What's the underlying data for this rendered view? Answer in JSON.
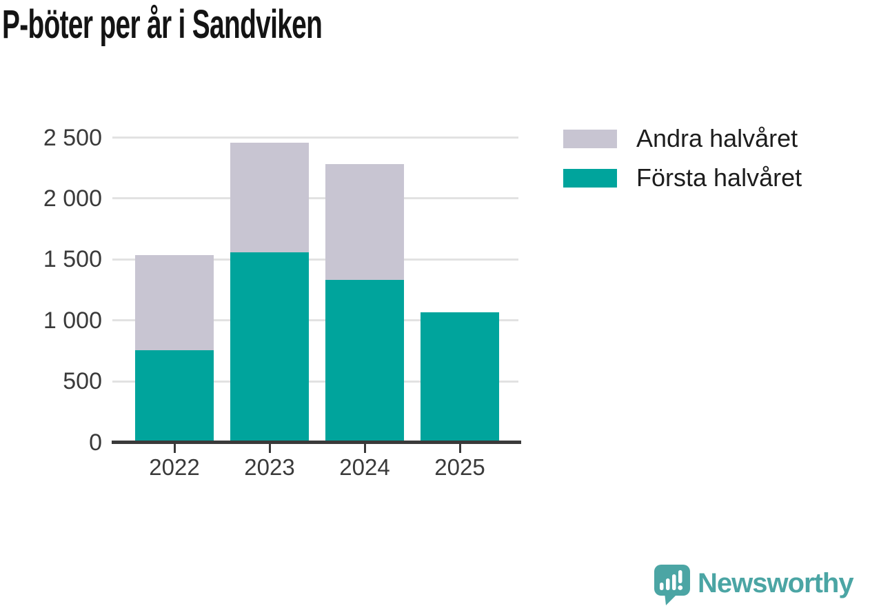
{
  "title": "P-böter per år i Sandviken",
  "chart_data": {
    "type": "bar",
    "stacked": true,
    "title": "P-böter per år i Sandviken",
    "categories": [
      "2022",
      "2023",
      "2024",
      "2025"
    ],
    "series": [
      {
        "name": "Första halvåret",
        "color": "#00a49c",
        "values": [
          745,
          1545,
          1320,
          1055
        ]
      },
      {
        "name": "Andra halvåret",
        "color": "#c8c5d2",
        "values": [
          780,
          900,
          950,
          0
        ]
      }
    ],
    "xlabel": "",
    "ylabel": "",
    "ylim": [
      0,
      2500
    ],
    "yticks": [
      0,
      500,
      1000,
      1500,
      2000,
      2500
    ],
    "ytick_labels": [
      "0",
      "500",
      "1 000",
      "1 500",
      "2 000",
      "2 500"
    ],
    "grid": true,
    "legend_position": "top-right"
  },
  "legend": {
    "items": [
      {
        "label": "Andra halvåret",
        "color": "#c8c5d2"
      },
      {
        "label": "Första halvåret",
        "color": "#00a49c"
      }
    ]
  },
  "branding": {
    "logo_text": "Newsworthy",
    "logo_color": "#4ba5a4",
    "icon": "bar-chart-speech-bubble"
  },
  "colors": {
    "bar_first_half": "#00a49c",
    "bar_second_half": "#c8c5d2",
    "gridline": "#e2e2e2",
    "axis": "#3a3a3a",
    "title_text": "#141414",
    "axis_label_text": "#3a3a3a",
    "legend_text": "#1d1d1d",
    "background": "#ffffff"
  }
}
